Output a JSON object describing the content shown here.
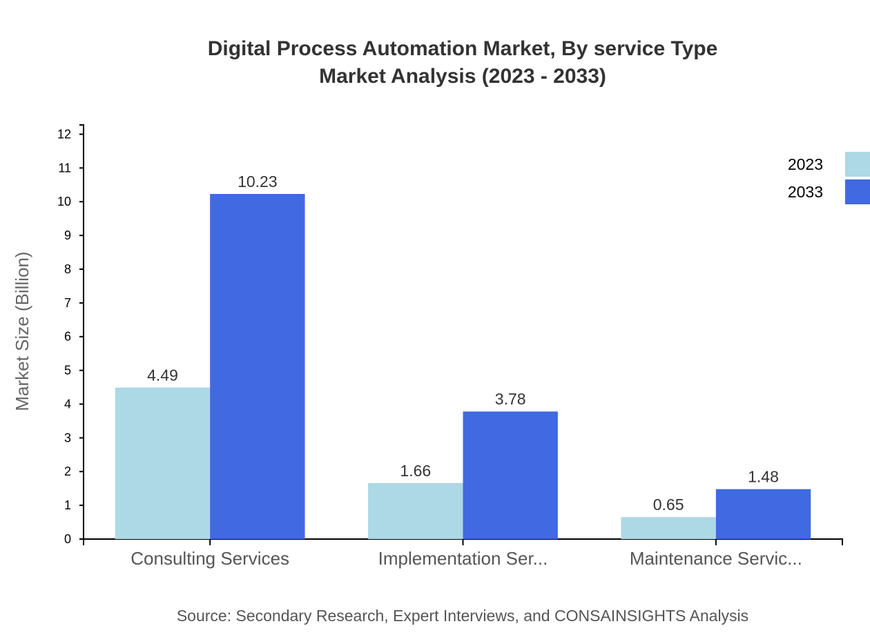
{
  "chart_data": {
    "type": "bar",
    "title": "Digital Process Automation Market, By service Type",
    "subtitle": "Market Analysis (2023 - 2033)",
    "xlabel": "",
    "ylabel": "Market Size (Billion)",
    "categories": [
      "Consulting Services",
      "Implementation Ser...",
      "Maintenance Servic..."
    ],
    "series": [
      {
        "name": "2023",
        "color": "#add8e6",
        "values": [
          4.49,
          1.66,
          0.65
        ]
      },
      {
        "name": "2033",
        "color": "#4169e1",
        "values": [
          10.23,
          3.78,
          1.48
        ]
      }
    ],
    "ylim": [
      0,
      12.276
    ],
    "yticks": [
      0,
      1,
      2,
      3,
      4,
      5,
      6,
      7,
      8,
      9,
      10,
      11,
      12
    ],
    "grid": false,
    "legend": "top-right",
    "source": "Source: Secondary Research, Expert Interviews, and CONSAINSIGHTS Analysis"
  }
}
